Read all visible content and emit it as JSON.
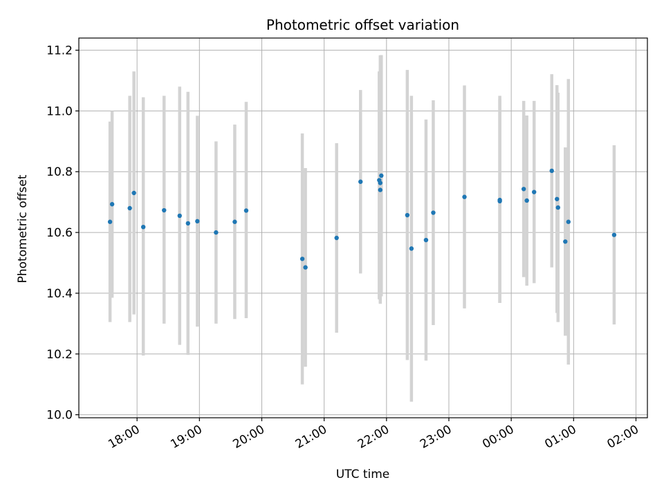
{
  "chart_data": {
    "type": "scatter",
    "title": "Photometric offset variation",
    "xlabel": "UTC time",
    "ylabel": "Photometric offset",
    "x_unit": "hours after 17:00 UTC",
    "xlim": [
      "17:04",
      "02:11"
    ],
    "ylim": [
      9.99,
      11.24
    ],
    "x_ticks": [
      "18:00",
      "19:00",
      "20:00",
      "21:00",
      "22:00",
      "23:00",
      "00:00",
      "01:00",
      "02:00"
    ],
    "y_ticks": [
      "10.0",
      "10.2",
      "10.4",
      "10.6",
      "10.8",
      "11.0",
      "11.2"
    ],
    "grid": true,
    "colors": {
      "points": "#1f77b4",
      "errorbars": "#d3d3d3",
      "grid": "#b0b0b0"
    },
    "series": [
      {
        "points": [
          {
            "x": "17:34",
            "y": 10.635,
            "yerr": [
              10.305,
              10.965
            ]
          },
          {
            "x": "17:36",
            "y": 10.693,
            "yerr": [
              10.385,
              11.0
            ]
          },
          {
            "x": "17:53",
            "y": 10.68,
            "yerr": [
              10.305,
              11.05
            ]
          },
          {
            "x": "17:57",
            "y": 10.73,
            "yerr": [
              10.33,
              11.13
            ]
          },
          {
            "x": "18:06",
            "y": 10.618,
            "yerr": [
              10.195,
              11.045
            ]
          },
          {
            "x": "18:26",
            "y": 10.673,
            "yerr": [
              10.3,
              11.05
            ]
          },
          {
            "x": "18:41",
            "y": 10.655,
            "yerr": [
              10.23,
              11.08
            ]
          },
          {
            "x": "18:49",
            "y": 10.63,
            "yerr": [
              10.197,
              11.063
            ]
          },
          {
            "x": "18:58",
            "y": 10.637,
            "yerr": [
              10.29,
              10.984
            ]
          },
          {
            "x": "19:16",
            "y": 10.6,
            "yerr": [
              10.3,
              10.9
            ]
          },
          {
            "x": "19:34",
            "y": 10.635,
            "yerr": [
              10.315,
              10.955
            ]
          },
          {
            "x": "19:45",
            "y": 10.672,
            "yerr": [
              10.318,
              11.03
            ]
          },
          {
            "x": "20:39",
            "y": 10.513,
            "yerr": [
              10.1,
              10.926
            ]
          },
          {
            "x": "20:42",
            "y": 10.485,
            "yerr": [
              10.158,
              10.812
            ]
          },
          {
            "x": "21:12",
            "y": 10.582,
            "yerr": [
              10.27,
              10.894
            ]
          },
          {
            "x": "21:35",
            "y": 10.767,
            "yerr": [
              10.465,
              11.069
            ]
          },
          {
            "x": "21:53",
            "y": 10.772,
            "yerr": [
              10.38,
              11.13
            ]
          },
          {
            "x": "21:54",
            "y": 10.74,
            "yerr": [
              10.365,
              11.16
            ]
          },
          {
            "x": "21:54",
            "y": 10.763,
            "yerr": [
              10.37,
              11.183
            ]
          },
          {
            "x": "21:55",
            "y": 10.787,
            "yerr": [
              10.39,
              11.184
            ]
          },
          {
            "x": "22:20",
            "y": 10.657,
            "yerr": [
              10.18,
              11.135
            ]
          },
          {
            "x": "22:24",
            "y": 10.547,
            "yerr": [
              10.043,
              11.05
            ]
          },
          {
            "x": "22:38",
            "y": 10.575,
            "yerr": [
              10.178,
              10.972
            ]
          },
          {
            "x": "22:45",
            "y": 10.665,
            "yerr": [
              10.295,
              11.035
            ]
          },
          {
            "x": "23:15",
            "y": 10.717,
            "yerr": [
              10.35,
              11.084
            ]
          },
          {
            "x": "23:49",
            "y": 10.707,
            "yerr": [
              10.368,
              11.05
            ]
          },
          {
            "x": "23:49",
            "y": 10.703,
            "yerr": [
              10.368,
              11.038
            ]
          },
          {
            "x": "00:12",
            "y": 10.743,
            "yerr": [
              10.453,
              11.033
            ]
          },
          {
            "x": "00:15",
            "y": 10.705,
            "yerr": [
              10.425,
              10.985
            ]
          },
          {
            "x": "00:22",
            "y": 10.733,
            "yerr": [
              10.433,
              11.033
            ]
          },
          {
            "x": "00:39",
            "y": 10.803,
            "yerr": [
              10.485,
              11.121
            ]
          },
          {
            "x": "00:44",
            "y": 10.71,
            "yerr": [
              10.335,
              11.085
            ]
          },
          {
            "x": "00:45",
            "y": 10.682,
            "yerr": [
              10.305,
              11.06
            ]
          },
          {
            "x": "00:52",
            "y": 10.57,
            "yerr": [
              10.26,
              10.88
            ]
          },
          {
            "x": "00:55",
            "y": 10.635,
            "yerr": [
              10.165,
              11.105
            ]
          },
          {
            "x": "01:39",
            "y": 10.592,
            "yerr": [
              10.297,
              10.887
            ]
          }
        ]
      }
    ]
  }
}
